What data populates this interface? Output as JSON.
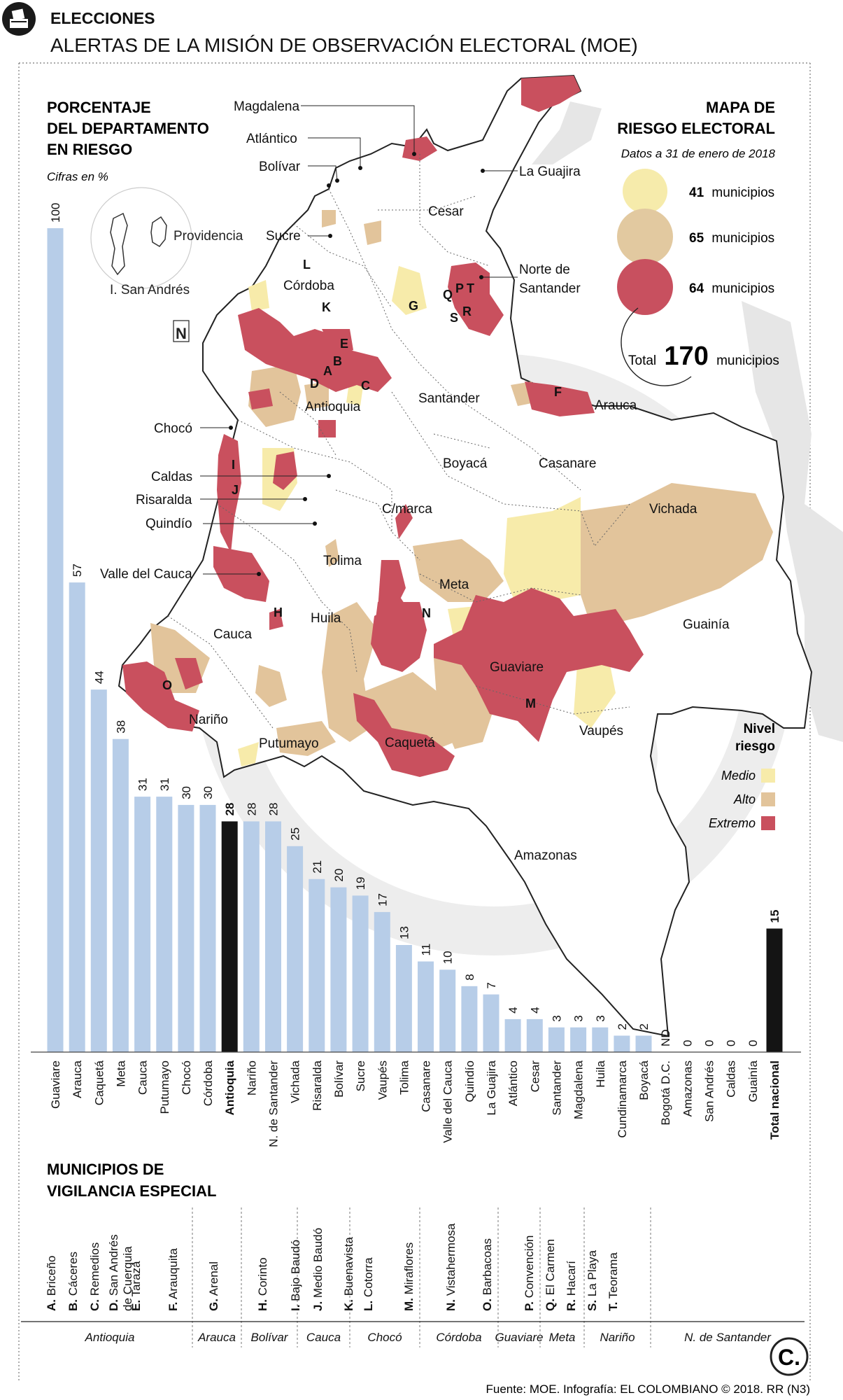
{
  "header": {
    "section": "ELECCIONES",
    "title": "ALERTAS DE LA MISIÓN DE OBSERVACIÓN ELECTORAL (MOE)"
  },
  "chart_panel": {
    "title_lines": [
      "PORCENTAJE",
      "DEL DEPARTAMENTO",
      "EN RIESGO"
    ],
    "subtitle": "Cifras en %"
  },
  "map_panel": {
    "title_lines": [
      "MAPA DE",
      "RIESGO ELECTORAL"
    ],
    "date_note": "Datos a 31 de enero de 2018",
    "bubbles": [
      {
        "count": "41",
        "label": "municipios",
        "color": "#f6ebab"
      },
      {
        "count": "65",
        "label": "municipios",
        "color": "#e2c9a0"
      },
      {
        "count": "64",
        "label": "municipios",
        "color": "#c8505f"
      }
    ],
    "total": {
      "prefix": "Total",
      "value": "170",
      "suffix": "municipios"
    },
    "north": "N",
    "islands": {
      "providencia": "Providencia",
      "san_andres": "I. San Andrés"
    },
    "legend": {
      "title_lines": [
        "Nivel",
        "riesgo"
      ],
      "items": [
        {
          "label": "Medio",
          "color": "#f7ebaa"
        },
        {
          "label": "Alto",
          "color": "#e2c49b"
        },
        {
          "label": "Extremo",
          "color": "#c9505e"
        }
      ]
    },
    "region_colors": {
      "medio": "#f7ebaa",
      "alto": "#e2c49b",
      "extremo": "#c9505e",
      "land": "#ffffff",
      "outside": "#e4e4e4"
    },
    "department_labels": [
      "Magdalena",
      "Atlántico",
      "Bolívar",
      "La Guajira",
      "Cesar",
      "Sucre",
      "Córdoba",
      "Norte de",
      "Santander",
      "Antioquia",
      "Santander",
      "Arauca",
      "Chocó",
      "Boyacá",
      "Casanare",
      "Caldas",
      "Risaralda",
      "C/marca",
      "Vichada",
      "Quindío",
      "Tolima",
      "Meta",
      "Valle del Cauca",
      "Guainía",
      "Huila",
      "Cauca",
      "Guaviare",
      "Nariño",
      "Vaupés",
      "Putumayo",
      "Caquetá",
      "Amazonas"
    ],
    "municipality_letters": [
      "A",
      "B",
      "C",
      "D",
      "E",
      "F",
      "G",
      "H",
      "I",
      "J",
      "K",
      "L",
      "M",
      "N",
      "O",
      "P",
      "Q",
      "R",
      "S",
      "T"
    ]
  },
  "chart_data": {
    "type": "bar",
    "title": "PORCENTAJE DEL DEPARTAMENTO EN RIESGO",
    "subtitle": "Cifras en %",
    "ylim": [
      0,
      100
    ],
    "bar_color": "#b7cde8",
    "highlight_color": "#141414",
    "categories": [
      "Guaviare",
      "Arauca",
      "Caquetá",
      "Meta",
      "Cauca",
      "Putumayo",
      "Chocó",
      "Córdoba",
      "Antioquia",
      "Nariño",
      "N. de Santander",
      "Vichada",
      "Risaralda",
      "Bolívar",
      "Sucre",
      "Vaupés",
      "Tolima",
      "Casanare",
      "Valle del Cauca",
      "Quindío",
      "La Guajira",
      "Atlántico",
      "Cesar",
      "Santander",
      "Magdalena",
      "Huila",
      "Cundinamarca",
      "Boyacá",
      "Bogotá D.C.",
      "Amazonas",
      "San Andrés",
      "Caldas",
      "Guainía",
      "Total nacional"
    ],
    "values": [
      100,
      57,
      44,
      38,
      31,
      31,
      30,
      30,
      28,
      28,
      28,
      25,
      21,
      20,
      19,
      17,
      13,
      11,
      10,
      8,
      7,
      4,
      4,
      3,
      3,
      3,
      2,
      2,
      null,
      0,
      0,
      0,
      0,
      15
    ],
    "value_labels": [
      "100",
      "57",
      "44",
      "38",
      "31",
      "31",
      "30",
      "30",
      "28",
      "28",
      "28",
      "25",
      "21",
      "20",
      "19",
      "17",
      "13",
      "11",
      "10",
      "8",
      "7",
      "4",
      "4",
      "3",
      "3",
      "3",
      "2",
      "2",
      "ND",
      "0",
      "0",
      "0",
      "0",
      "15"
    ],
    "highlighted": [
      "Antioquia",
      "Total nacional"
    ]
  },
  "special": {
    "title_lines": [
      "MUNICIPIOS DE",
      "VIGILANCIA ESPECIAL"
    ],
    "groups": [
      {
        "department": "Antioquia",
        "items": [
          [
            "A. Briceño"
          ],
          [
            "B. Cáceres"
          ],
          [
            "C. Remedios"
          ],
          [
            "D. San Andrés",
            "de Cuerquia"
          ],
          [
            "E. Tarazá"
          ]
        ]
      },
      {
        "department": "Arauca",
        "items": [
          [
            "F. Arauquita"
          ]
        ]
      },
      {
        "department": "Bolívar",
        "items": [
          [
            "G. Arenal"
          ]
        ]
      },
      {
        "department": "Cauca",
        "items": [
          [
            "H. Corinto"
          ]
        ]
      },
      {
        "department": "Chocó",
        "items": [
          [
            "I. Bajo Baudó"
          ],
          [
            "J. Medio Baudó"
          ]
        ]
      },
      {
        "department": "Córdoba",
        "items": [
          [
            "K. Buenavista"
          ],
          [
            "L. Cotorra"
          ]
        ]
      },
      {
        "department": "Guaviare",
        "items": [
          [
            "M. Miraflores"
          ]
        ]
      },
      {
        "department": "Meta",
        "items": [
          [
            "N. Vistahermosa"
          ]
        ]
      },
      {
        "department": "Nariño",
        "items": [
          [
            "O. Barbacoas"
          ]
        ]
      },
      {
        "department": "N. de Santander",
        "items": [
          [
            "P. Convención"
          ],
          [
            "Q. El Carmen"
          ],
          [
            "R. Hacarí"
          ],
          [
            "S. La Playa"
          ],
          [
            "T. Teorama"
          ]
        ]
      }
    ]
  },
  "footer": {
    "source": "Fuente: MOE. Infografía: EL COLOMBIANO © 2018. RR (N3)",
    "logo": "C."
  }
}
